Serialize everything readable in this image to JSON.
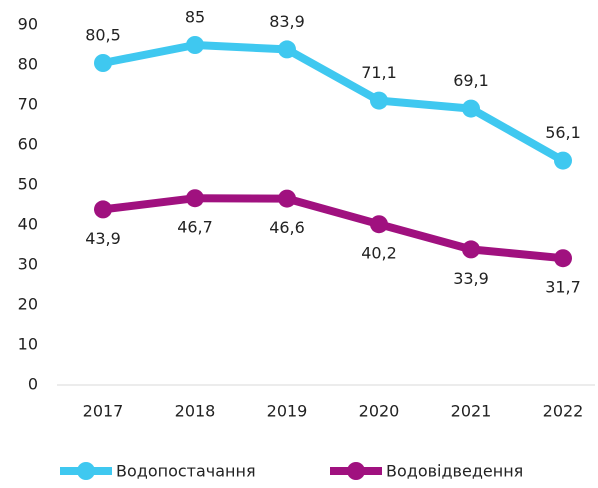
{
  "chart_data": {
    "type": "line",
    "categories": [
      "2017",
      "2018",
      "2019",
      "2020",
      "2021",
      "2022"
    ],
    "series": [
      {
        "name": "Водопостачання",
        "color": "#3fc8f0",
        "values": [
          80.5,
          85,
          83.9,
          71.1,
          69.1,
          56.1
        ],
        "value_labels": [
          "80,5",
          "85",
          "83,9",
          "71,1",
          "69,1",
          "56,1"
        ]
      },
      {
        "name": "Водовідведення",
        "color": "#a0117f",
        "values": [
          43.9,
          46.7,
          46.6,
          40.2,
          33.9,
          31.7
        ],
        "value_labels": [
          "43,9",
          "46,7",
          "46,6",
          "40,2",
          "33,9",
          "31,7"
        ]
      }
    ],
    "ylim": [
      0,
      90
    ],
    "yticks": [
      0,
      10,
      20,
      30,
      40,
      50,
      60,
      70,
      80,
      90
    ],
    "grid": false
  }
}
